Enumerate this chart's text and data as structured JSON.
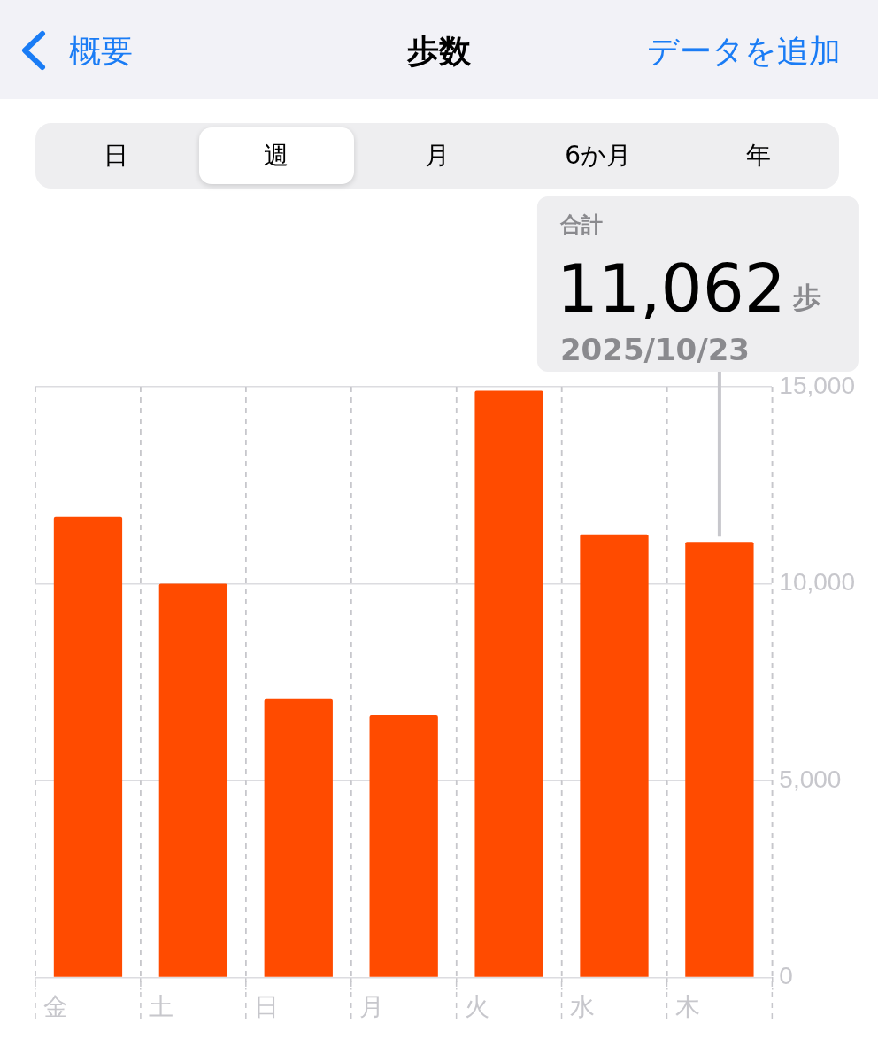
{
  "chart_data": {
    "type": "bar",
    "title": "歩数",
    "categories": [
      "金",
      "土",
      "日",
      "月",
      "火",
      "水",
      "木"
    ],
    "values": [
      11700,
      10000,
      7070,
      6660,
      14900,
      11250,
      11062
    ],
    "color": "#ff4b00",
    "ylim": [
      0,
      15000
    ],
    "yticks": [
      0,
      {
        "value": 5000,
        "label": "5,000"
      },
      {
        "value": 10000,
        "label": "10,000"
      },
      {
        "value": 15000,
        "label": "15,000"
      }
    ],
    "grid": true,
    "legend": false,
    "annotations": [
      "概要",
      "データを追加",
      "日",
      "週",
      "月",
      "6か月",
      "年",
      "合計",
      "11,062",
      "歩",
      "2025/10/23"
    ]
  }
}
